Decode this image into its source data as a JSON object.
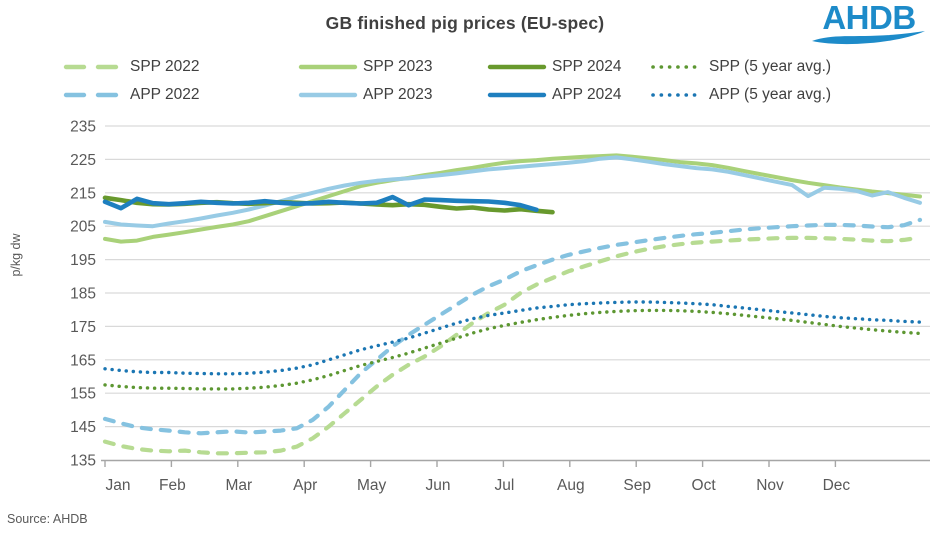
{
  "header": {
    "title": "GB finished pig prices (EU-spec)",
    "logo_text": "AHDB"
  },
  "source_note": "Source: AHDB",
  "colors": {
    "title_text": "#404040",
    "axis_text": "#595959",
    "gridline": "#d9d9d9",
    "axis_line": "#a6a6a6",
    "logo_blue": "#1d8bc9",
    "background": "#ffffff"
  },
  "chart_data": {
    "type": "line",
    "title": "GB finished pig prices (EU-spec)",
    "ylabel": "p/kg dw",
    "xlabel": "",
    "ylim": [
      135,
      235
    ],
    "ytick_step": 10,
    "yticks": [
      135,
      145,
      155,
      165,
      175,
      185,
      195,
      205,
      215,
      225,
      235
    ],
    "categories_x": [
      "Jan",
      "Feb",
      "Mar",
      "Apr",
      "May",
      "Jun",
      "Jul",
      "Aug",
      "Sep",
      "Oct",
      "Nov",
      "Dec"
    ],
    "x_resolution": "weekly",
    "grid": "horizontal",
    "legend_position": "top",
    "legend": [
      {
        "label": "SPP 2022",
        "series": "spp_2022"
      },
      {
        "label": "SPP 2023",
        "series": "spp_2023"
      },
      {
        "label": "SPP 2024",
        "series": "spp_2024"
      },
      {
        "label": "SPP (5 year avg.)",
        "series": "spp_5yr_avg"
      },
      {
        "label": "APP 2022",
        "series": "app_2022"
      },
      {
        "label": "APP 2023",
        "series": "app_2023"
      },
      {
        "label": "APP 2024",
        "series": "app_2024"
      },
      {
        "label": "APP (5 year avg.)",
        "series": "app_5yr_avg"
      }
    ],
    "series": [
      {
        "key": "spp_2022",
        "name": "SPP 2022",
        "color": "#b7db92",
        "style": "dashed",
        "width": 4.2,
        "values": [
          140.5,
          139.2,
          138.3,
          137.8,
          137.6,
          137.8,
          137.3,
          137.0,
          137.0,
          137.2,
          137.3,
          137.8,
          139.0,
          141.5,
          145.0,
          149.0,
          153.0,
          157.0,
          160.5,
          163.5,
          166.0,
          169.0,
          172.5,
          176.0,
          179.0,
          181.5,
          185.0,
          187.5,
          189.5,
          191.5,
          193.0,
          194.5,
          196.0,
          197.2,
          198.2,
          199.0,
          199.6,
          200.1,
          200.4,
          200.7,
          201.0,
          201.2,
          201.4,
          201.5,
          201.5,
          201.4,
          201.2,
          201.0,
          200.7,
          200.5,
          200.9,
          201.6
        ]
      },
      {
        "key": "app_2022",
        "name": "APP 2022",
        "color": "#85c2e0",
        "style": "dashed",
        "width": 4.2,
        "values": [
          147.3,
          146.0,
          144.8,
          144.2,
          143.8,
          143.3,
          143.0,
          143.3,
          143.6,
          143.2,
          143.5,
          143.8,
          144.5,
          147.0,
          151.0,
          156.0,
          161.0,
          165.0,
          169.0,
          172.5,
          175.5,
          178.5,
          181.5,
          184.5,
          187.0,
          189.0,
          191.5,
          193.3,
          195.0,
          196.4,
          197.5,
          198.5,
          199.4,
          200.1,
          200.8,
          201.5,
          202.1,
          202.6,
          203.0,
          203.5,
          204.0,
          204.4,
          204.7,
          205.0,
          205.2,
          205.4,
          205.4,
          205.2,
          204.9,
          204.7,
          205.3,
          206.9
        ]
      },
      {
        "key": "spp_5yr_avg",
        "name": "SPP (5 year avg.)",
        "color": "#5d9732",
        "style": "dotted",
        "width": 3.4,
        "values": [
          157.5,
          157.0,
          156.7,
          156.5,
          156.5,
          156.4,
          156.3,
          156.3,
          156.3,
          156.5,
          156.8,
          157.3,
          158.0,
          159.0,
          160.3,
          161.8,
          163.3,
          164.5,
          165.7,
          167.0,
          168.5,
          170.0,
          171.5,
          173.0,
          174.3,
          175.3,
          176.2,
          177.0,
          177.7,
          178.3,
          178.8,
          179.2,
          179.5,
          179.7,
          179.8,
          179.8,
          179.7,
          179.5,
          179.2,
          178.8,
          178.3,
          177.8,
          177.3,
          176.8,
          176.2,
          175.6,
          175.0,
          174.5,
          174.0,
          173.6,
          173.2,
          172.9
        ]
      },
      {
        "key": "app_5yr_avg",
        "name": "APP (5 year avg.)",
        "color": "#1b76b3",
        "style": "dotted",
        "width": 3.4,
        "values": [
          162.3,
          161.8,
          161.4,
          161.2,
          161.2,
          161.0,
          160.9,
          160.8,
          160.8,
          161.0,
          161.3,
          161.8,
          162.5,
          163.5,
          165.0,
          166.5,
          168.0,
          169.2,
          170.3,
          171.5,
          173.0,
          174.5,
          176.0,
          177.3,
          178.3,
          179.0,
          179.8,
          180.5,
          181.0,
          181.5,
          181.8,
          182.0,
          182.2,
          182.3,
          182.3,
          182.2,
          182.0,
          181.8,
          181.5,
          181.0,
          180.5,
          180.0,
          179.5,
          179.0,
          178.5,
          178.0,
          177.6,
          177.3,
          177.0,
          176.8,
          176.5,
          176.3
        ]
      },
      {
        "key": "spp_2023",
        "name": "SPP 2023",
        "color": "#a9d179",
        "style": "solid",
        "width": 4.0,
        "values": [
          201.2,
          200.4,
          200.7,
          201.8,
          202.5,
          203.2,
          204.0,
          204.8,
          205.5,
          206.5,
          208.0,
          209.5,
          211.0,
          212.5,
          214.0,
          215.5,
          217.0,
          218.0,
          218.8,
          219.5,
          220.3,
          221.0,
          221.8,
          222.5,
          223.3,
          224.0,
          224.5,
          224.8,
          225.2,
          225.5,
          225.8,
          226.0,
          226.2,
          225.8,
          225.3,
          224.8,
          224.2,
          223.8,
          223.3,
          222.5,
          221.5,
          220.6,
          219.7,
          218.8,
          218.0,
          217.3,
          216.6,
          216.0,
          215.4,
          214.9,
          214.4,
          213.9
        ]
      },
      {
        "key": "app_2023",
        "name": "APP 2023",
        "color": "#98cbe5",
        "style": "solid",
        "width": 4.0,
        "values": [
          206.3,
          205.5,
          205.2,
          205.0,
          205.8,
          206.5,
          207.3,
          208.2,
          209.0,
          210.0,
          211.2,
          212.5,
          213.8,
          215.0,
          216.2,
          217.2,
          218.0,
          218.6,
          219.0,
          219.3,
          219.8,
          220.3,
          220.8,
          221.4,
          222.0,
          222.4,
          222.8,
          223.2,
          223.6,
          224.0,
          224.5,
          225.2,
          225.6,
          225.0,
          224.3,
          223.6,
          223.0,
          222.4,
          222.0,
          221.3,
          220.3,
          219.3,
          218.3,
          217.3,
          214.0,
          216.5,
          216.2,
          215.6,
          214.2,
          215.2,
          213.5,
          212.0
        ]
      },
      {
        "key": "spp_2024",
        "name": "SPP 2024",
        "color": "#68992d",
        "style": "solid",
        "width": 4.6,
        "values": [
          213.5,
          212.8,
          212.0,
          211.6,
          211.5,
          211.7,
          212.0,
          212.2,
          211.9,
          211.7,
          211.9,
          212.2,
          212.0,
          211.8,
          211.9,
          212.1,
          211.8,
          211.5,
          211.3,
          211.6,
          211.4,
          210.8,
          210.3,
          210.6,
          210.0,
          209.7,
          210.1,
          209.6,
          209.2
        ]
      },
      {
        "key": "app_2024",
        "name": "APP 2024",
        "color": "#1e7fbf",
        "style": "solid",
        "width": 4.6,
        "values": [
          212.3,
          210.4,
          213.2,
          211.9,
          211.6,
          211.9,
          212.3,
          212.0,
          211.8,
          212.0,
          212.5,
          212.0,
          211.7,
          211.9,
          212.3,
          212.0,
          211.8,
          212.0,
          213.7,
          211.3,
          213.0,
          212.8,
          212.6,
          212.5,
          212.4,
          212.0,
          211.3,
          209.9
        ]
      }
    ]
  }
}
